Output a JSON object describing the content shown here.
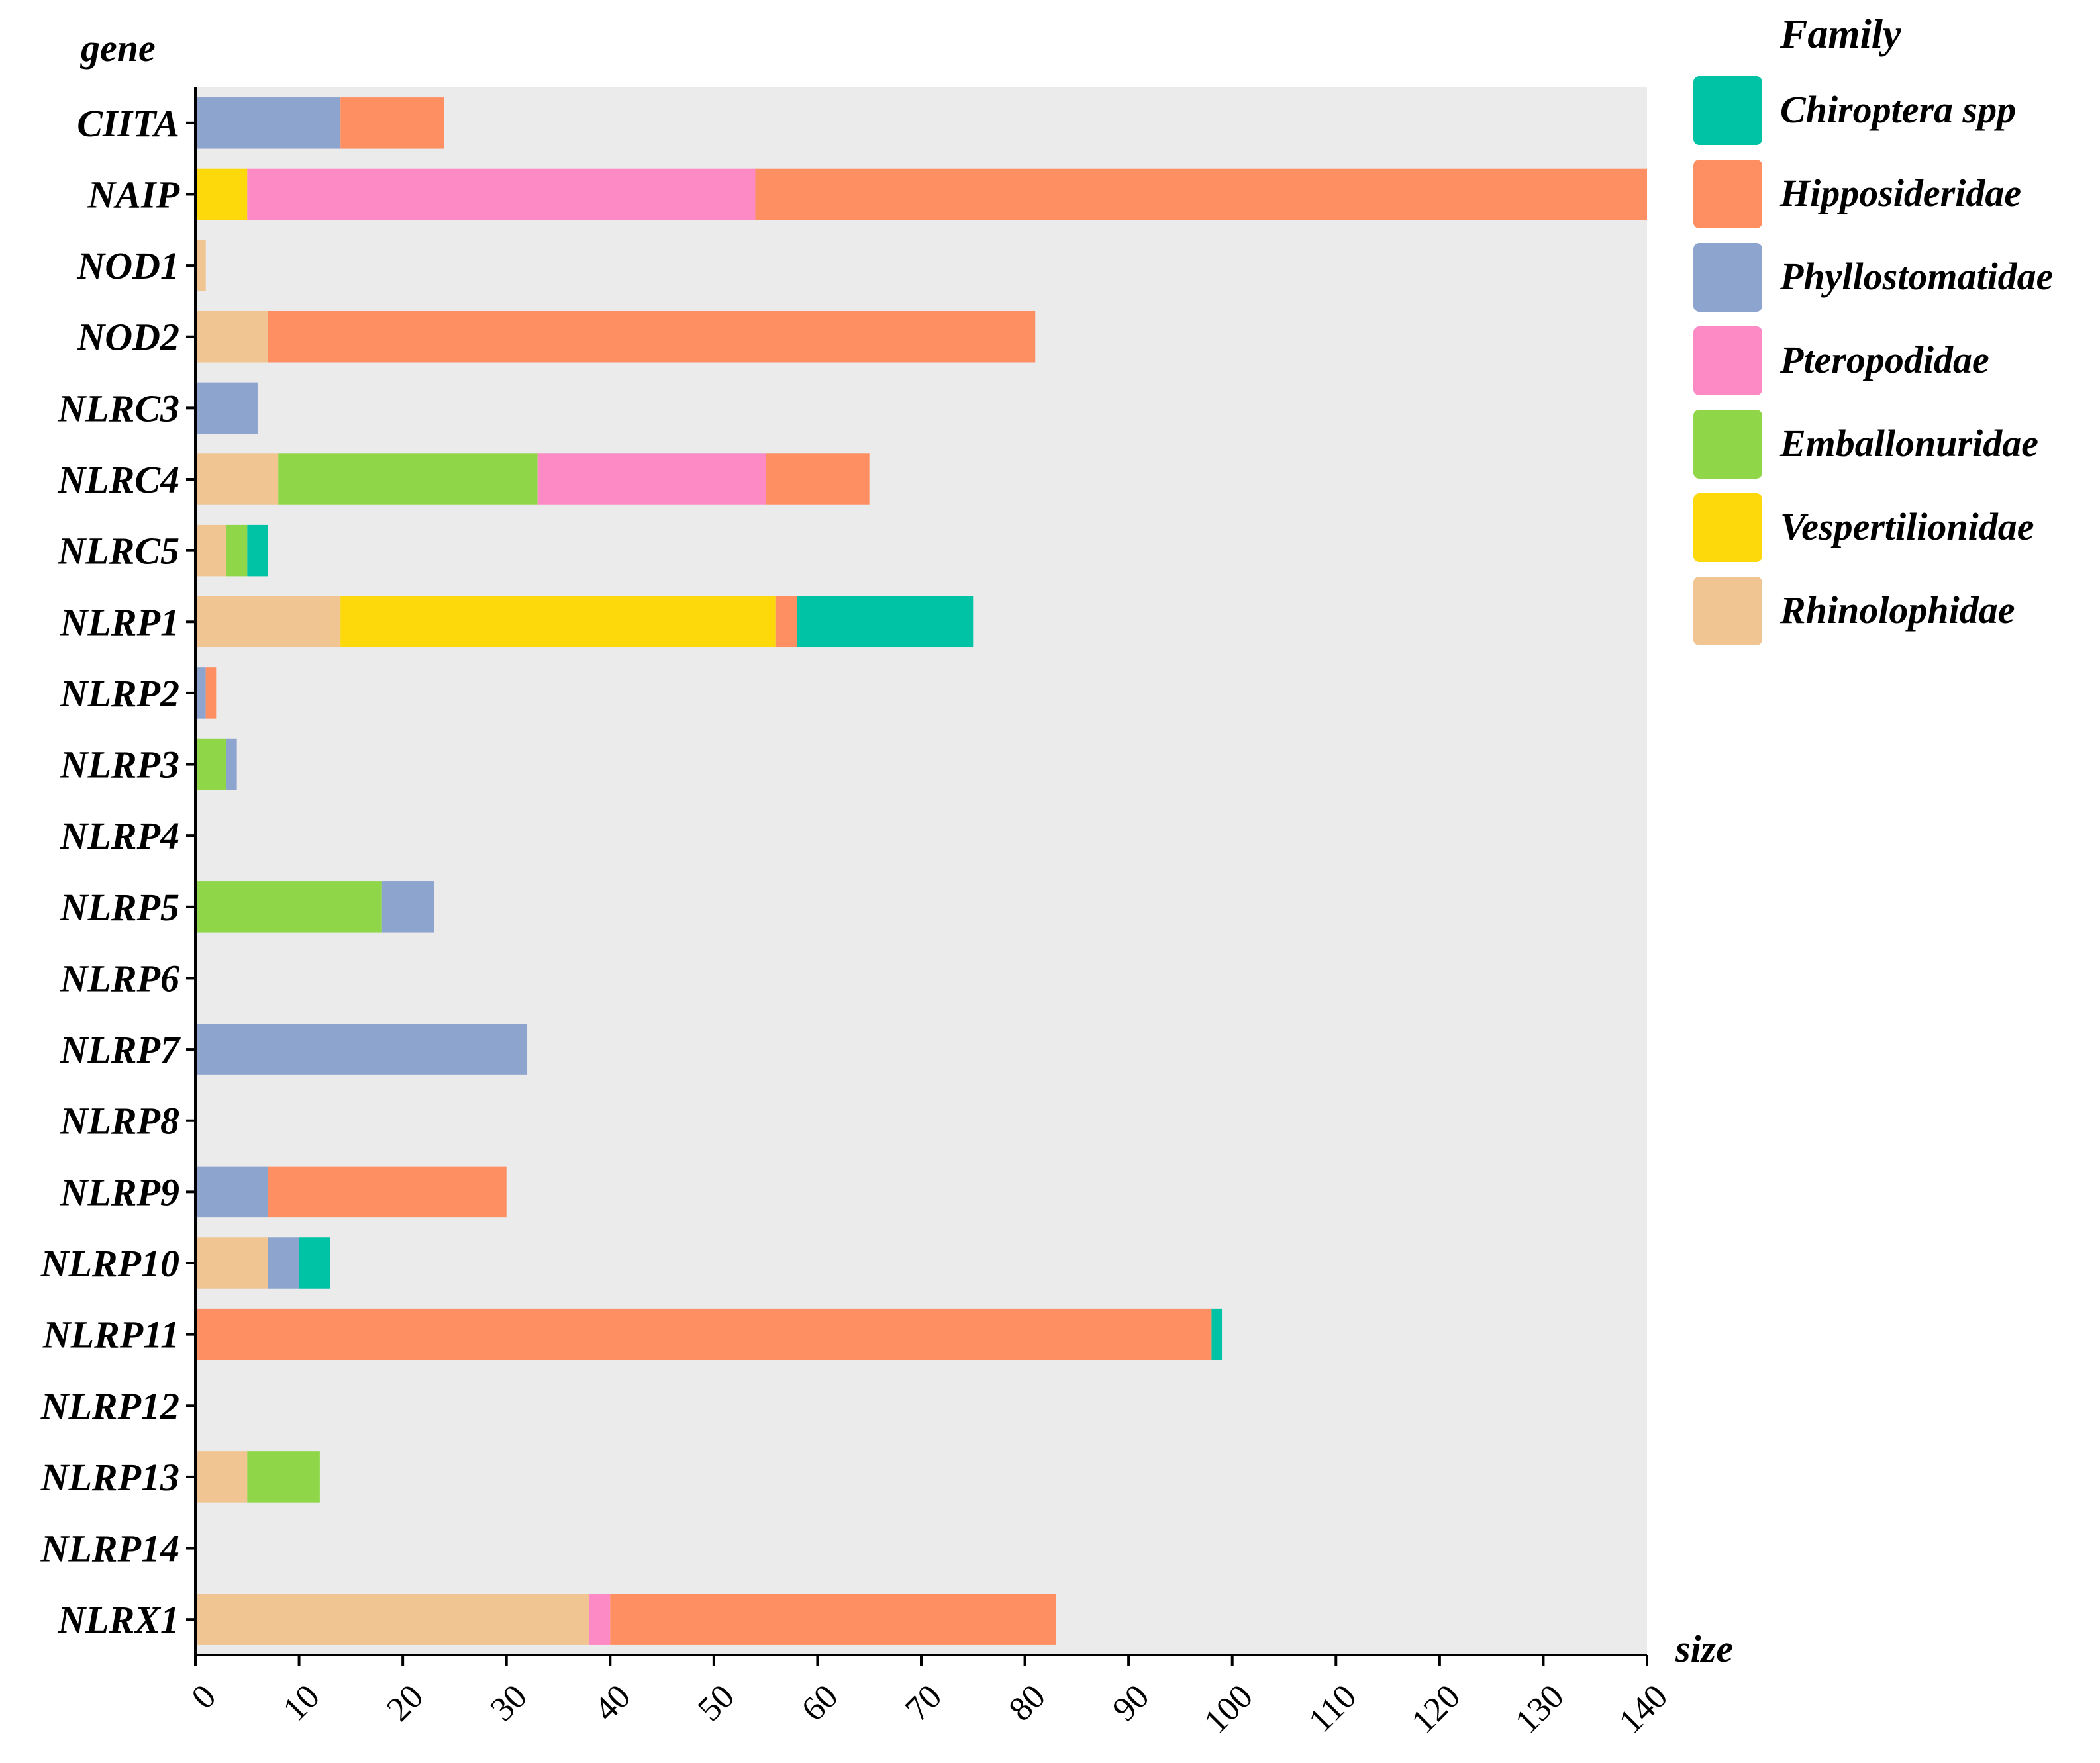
{
  "chart_data": {
    "type": "bar",
    "orientation": "horizontal",
    "stacked": true,
    "ylabel": "gene",
    "xlabel": "size",
    "xlim": [
      0,
      140
    ],
    "x_ticks": [
      0,
      10,
      20,
      30,
      40,
      50,
      60,
      70,
      80,
      90,
      100,
      110,
      120,
      130,
      140
    ],
    "legend_title": "Family",
    "legend_position": "top-right",
    "categories": [
      "CIITA",
      "NAIP",
      "NOD1",
      "NOD2",
      "NLRC3",
      "NLRC4",
      "NLRC5",
      "NLRP1",
      "NLRP2",
      "NLRP3",
      "NLRP4",
      "NLRP5",
      "NLRP6",
      "NLRP7",
      "NLRP8",
      "NLRP9",
      "NLRP10",
      "NLRP11",
      "NLRP12",
      "NLRP13",
      "NLRP14",
      "NLRX1"
    ],
    "series": [
      {
        "name": "Rhinolophidae",
        "color": "#F0C591",
        "values": [
          0,
          0,
          1,
          7,
          0,
          8,
          3,
          14,
          0,
          0,
          0,
          0,
          0,
          0,
          0,
          0,
          7,
          0,
          0,
          5,
          0,
          38
        ]
      },
      {
        "name": "Vespertilionidae",
        "color": "#FDD80A",
        "values": [
          0,
          5,
          0,
          0,
          0,
          0,
          0,
          42,
          0,
          0,
          0,
          0,
          0,
          0,
          0,
          0,
          0,
          0,
          0,
          0,
          0,
          0
        ]
      },
      {
        "name": "Emballonuridae",
        "color": "#8FD749",
        "values": [
          0,
          0,
          0,
          0,
          0,
          25,
          2,
          0,
          0,
          3,
          0,
          18,
          0,
          0,
          0,
          0,
          0,
          0,
          0,
          7,
          0,
          0
        ]
      },
      {
        "name": "Pteropodidae",
        "color": "#FD8AC4",
        "values": [
          0,
          49,
          0,
          0,
          0,
          22,
          0,
          0,
          0,
          0,
          0,
          0,
          0,
          0,
          0,
          0,
          0,
          0,
          0,
          0,
          0,
          2
        ]
      },
      {
        "name": "Phyllostomatidae",
        "color": "#8DA4CF",
        "values": [
          14,
          0,
          0,
          0,
          6,
          0,
          0,
          0,
          1,
          1,
          0,
          5,
          0,
          32,
          0,
          7,
          3,
          0,
          0,
          0,
          0,
          0
        ]
      },
      {
        "name": "Hipposideridae",
        "color": "#FD8F63",
        "values": [
          10,
          86,
          0,
          74,
          0,
          10,
          0,
          2,
          1,
          0,
          0,
          0,
          0,
          0,
          0,
          23,
          0,
          98,
          0,
          0,
          0,
          43
        ]
      },
      {
        "name": "Chiroptera spp",
        "color": "#00C3A5",
        "values": [
          0,
          0,
          0,
          0,
          0,
          0,
          2,
          17,
          0,
          0,
          0,
          0,
          0,
          0,
          0,
          0,
          3,
          1,
          0,
          0,
          0,
          0
        ]
      }
    ],
    "legend_order": [
      "Chiroptera spp",
      "Hipposideridae",
      "Phyllostomatidae",
      "Pteropodidae",
      "Emballonuridae",
      "Vespertilionidae",
      "Rhinolophidae"
    ],
    "panel_color": "#EBEBEB"
  }
}
